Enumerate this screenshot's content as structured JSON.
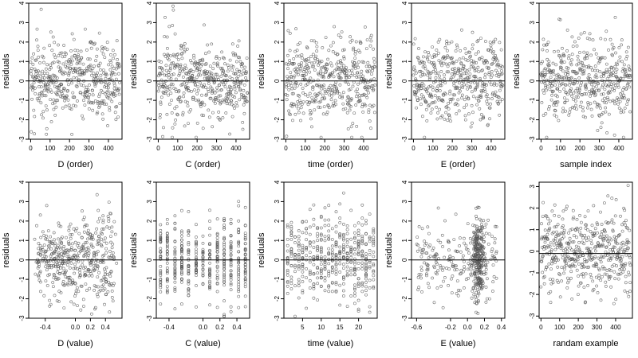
{
  "chart_data": [
    {
      "type": "scatter",
      "xlabel": "D (order)",
      "ylabel": "residuals",
      "xlim": [
        -10,
        470
      ],
      "ylim": [
        -3,
        4
      ],
      "x_ticks": [
        0,
        100,
        200,
        300,
        400
      ],
      "x_tick_labels": [
        "0",
        "100",
        "200",
        "300",
        "400"
      ],
      "y_ticks": [
        -3,
        -2,
        -1,
        0,
        1,
        2,
        3,
        4
      ],
      "y_tick_labels": [
        "-3",
        "-2",
        "-1",
        "0",
        "1",
        "2",
        "3",
        "4"
      ],
      "hline": 0,
      "x_kind": "index",
      "n": 460
    },
    {
      "type": "scatter",
      "xlabel": "C (order)",
      "ylabel": "residuals",
      "xlim": [
        -10,
        470
      ],
      "ylim": [
        -3,
        4
      ],
      "x_ticks": [
        0,
        100,
        200,
        300,
        400
      ],
      "x_tick_labels": [
        "0",
        "100",
        "200",
        "300",
        "400"
      ],
      "y_ticks": [
        -3,
        -2,
        -1,
        0,
        1,
        2,
        3,
        4
      ],
      "y_tick_labels": [
        "-3",
        "-2",
        "-1",
        "0",
        "1",
        "2",
        "3",
        "4"
      ],
      "hline": 0,
      "x_kind": "index",
      "n": 460
    },
    {
      "type": "scatter",
      "xlabel": "time (order)",
      "ylabel": "residuals",
      "xlim": [
        -10,
        470
      ],
      "ylim": [
        -3,
        4
      ],
      "x_ticks": [
        0,
        100,
        200,
        300,
        400
      ],
      "x_tick_labels": [
        "0",
        "100",
        "200",
        "300",
        "400"
      ],
      "y_ticks": [
        -3,
        -2,
        -1,
        0,
        1,
        2,
        3,
        4
      ],
      "y_tick_labels": [
        "-3",
        "-2",
        "-1",
        "0",
        "1",
        "2",
        "3",
        "4"
      ],
      "hline": 0,
      "x_kind": "index",
      "n": 460
    },
    {
      "type": "scatter",
      "xlabel": "E (order)",
      "ylabel": "residuals",
      "xlim": [
        -10,
        470
      ],
      "ylim": [
        -3,
        4
      ],
      "x_ticks": [
        0,
        100,
        200,
        300,
        400
      ],
      "x_tick_labels": [
        "0",
        "100",
        "200",
        "300",
        "400"
      ],
      "y_ticks": [
        -3,
        -2,
        -1,
        0,
        1,
        2,
        3,
        4
      ],
      "y_tick_labels": [
        "-3",
        "-2",
        "-1",
        "0",
        "1",
        "2",
        "3",
        "4"
      ],
      "hline": 0,
      "x_kind": "index",
      "n": 460
    },
    {
      "type": "scatter",
      "xlabel": "sample index",
      "ylabel": "residuals",
      "xlim": [
        -10,
        470
      ],
      "ylim": [
        -3,
        4
      ],
      "x_ticks": [
        0,
        100,
        200,
        300,
        400
      ],
      "x_tick_labels": [
        "0",
        "100",
        "200",
        "300",
        "400"
      ],
      "y_ticks": [
        -3,
        -2,
        -1,
        0,
        1,
        2,
        3,
        4
      ],
      "y_tick_labels": [
        "-3",
        "-2",
        "-1",
        "0",
        "1",
        "2",
        "3",
        "4"
      ],
      "hline": 0,
      "x_kind": "index",
      "n": 460
    },
    {
      "type": "scatter",
      "xlabel": "D (value)",
      "ylabel": "residuals",
      "xlim": [
        -0.62,
        0.62
      ],
      "ylim": [
        -3,
        4
      ],
      "x_ticks": [
        -0.4,
        0,
        0.2,
        0.4
      ],
      "x_tick_labels": [
        "-0.4",
        "0.0",
        "0.2",
        "0.4"
      ],
      "y_ticks": [
        -3,
        -2,
        -1,
        0,
        1,
        2,
        3,
        4
      ],
      "y_tick_labels": [
        "-3",
        "-2",
        "-1",
        "0",
        "1",
        "2",
        "3",
        "4"
      ],
      "hline": 0,
      "x_kind": "spread",
      "n": 460
    },
    {
      "type": "scatter",
      "xlabel": "C (value)",
      "ylabel": "residuals",
      "xlim": [
        -0.55,
        0.55
      ],
      "ylim": [
        -3,
        4
      ],
      "x_ticks": [
        -0.4,
        0,
        0.2,
        0.4
      ],
      "x_tick_labels": [
        "-0.4",
        "0.0",
        "0.2",
        "0.4"
      ],
      "y_ticks": [
        -3,
        -2,
        -1,
        0,
        1,
        2,
        3,
        4
      ],
      "y_tick_labels": [
        "-3",
        "-2",
        "-1",
        "0",
        "1",
        "2",
        "3",
        "4"
      ],
      "hline": 0,
      "x_kind": "levels",
      "x_levels": [
        -0.5,
        -0.42,
        -0.33,
        -0.25,
        -0.17,
        -0.08,
        0.0,
        0.08,
        0.17,
        0.25,
        0.33,
        0.42,
        0.5
      ],
      "n": 460
    },
    {
      "type": "scatter",
      "xlabel": "time (value)",
      "ylabel": "residuals",
      "xlim": [
        0,
        25
      ],
      "ylim": [
        -3,
        4
      ],
      "x_ticks": [
        5,
        10,
        15,
        20
      ],
      "x_tick_labels": [
        "5",
        "10",
        "15",
        "20"
      ],
      "y_ticks": [
        -3,
        -2,
        -1,
        0,
        1,
        2,
        3,
        4
      ],
      "y_tick_labels": [
        "-3",
        "-2",
        "-1",
        "0",
        "1",
        "2",
        "3",
        "4"
      ],
      "hline": 0,
      "x_kind": "levels",
      "x_levels": [
        1,
        2,
        3,
        4,
        5,
        6,
        7,
        8,
        9,
        10,
        11,
        12,
        13,
        14,
        15,
        16,
        17,
        18,
        19,
        20,
        21,
        22,
        23,
        24
      ],
      "n": 460
    },
    {
      "type": "scatter",
      "xlabel": "E (value)",
      "ylabel": "residuals",
      "xlim": [
        -0.66,
        0.44
      ],
      "ylim": [
        -3,
        4
      ],
      "x_ticks": [
        -0.6,
        -0.2,
        0,
        0.2,
        0.4
      ],
      "x_tick_labels": [
        "-0.6",
        "-0.2",
        "0.0",
        "0.2",
        "0.4"
      ],
      "y_ticks": [
        -3,
        -2,
        -1,
        0,
        1,
        2,
        3,
        4
      ],
      "y_tick_labels": [
        "-3",
        "-2",
        "-1",
        "0",
        "1",
        "2",
        "3",
        "4"
      ],
      "hline": 0,
      "x_kind": "skewed",
      "n": 460
    },
    {
      "type": "scatter",
      "xlabel": "randam example",
      "ylabel": "",
      "xlim": [
        -10,
        490
      ],
      "ylim": [
        -3.1,
        3.2
      ],
      "x_ticks": [
        0,
        100,
        200,
        300,
        400
      ],
      "x_tick_labels": [
        "0",
        "100",
        "200",
        "300",
        "400"
      ],
      "y_ticks": [
        -3,
        -2,
        -1,
        0,
        1,
        2,
        3
      ],
      "y_tick_labels": [
        "-3",
        "-2",
        "-1",
        "0",
        "1",
        "2",
        "3"
      ],
      "hline": -0.1,
      "x_kind": "index",
      "n": 480
    }
  ],
  "colors": {
    "points": "#555555",
    "hline": "#000000",
    "axes": "#000000"
  }
}
